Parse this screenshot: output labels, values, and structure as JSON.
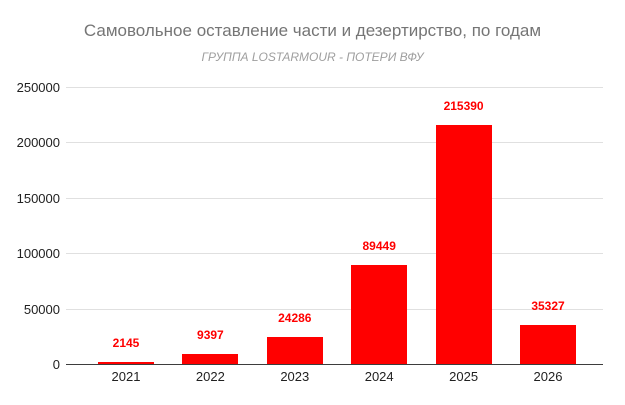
{
  "chart_data": {
    "type": "bar",
    "title": "Самовольное оставление части и дезертирство, по годам",
    "subtitle": "ГРУППА LOSTARMOUR - ПОТЕРИ ВФУ",
    "categories": [
      "2021",
      "2022",
      "2023",
      "2024",
      "2025",
      "2026"
    ],
    "values": [
      2145,
      9397,
      24286,
      89449,
      215390,
      35327
    ],
    "data_labels": [
      "2145",
      "9397",
      "24286",
      "89449",
      "215390",
      "35327"
    ],
    "xlabel": "",
    "ylabel": "",
    "ylim": [
      0,
      250000
    ],
    "yticks": [
      0,
      50000,
      100000,
      150000,
      200000,
      250000
    ],
    "grid": true,
    "legend": "none"
  },
  "colors": {
    "background": "#ffffff",
    "bar": "#ff0000",
    "data_label": "#ff0000",
    "title": "#757575",
    "subtitle": "#9e9e9e",
    "axis_label": "#212121",
    "gridline": "#e0e0e0",
    "axis_line": "#3d3d3d"
  }
}
